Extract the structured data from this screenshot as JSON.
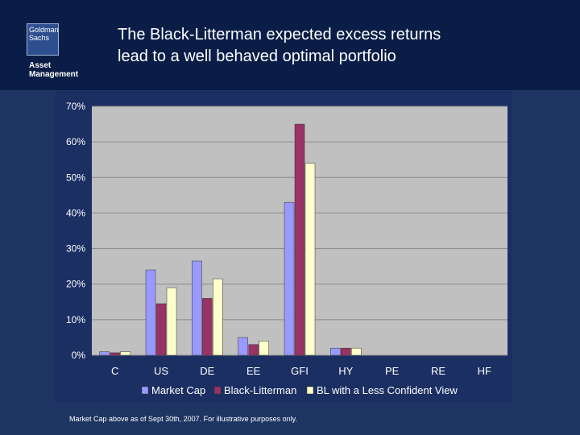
{
  "header": {
    "logo_line1": "Goldman",
    "logo_line2": "Sachs",
    "logo_sub1": "Asset",
    "logo_sub2": "Management",
    "title_line1": "The Black-Litterman expected excess returns",
    "title_line2": "lead to a well behaved optimal portfolio"
  },
  "colors": {
    "page_bg": "#1e3563",
    "header_bg": "#0a1d47",
    "plot_bg": "#c0c0c0",
    "market_cap": "#9999ff",
    "black_litterman": "#993366",
    "bl_less_confident": "#ffffcc"
  },
  "chart_data": {
    "type": "bar",
    "categories": [
      "C",
      "US",
      "DE",
      "EE",
      "GFI",
      "HY",
      "PE",
      "RE",
      "HF"
    ],
    "series": [
      {
        "name": "Market Cap",
        "values": [
          1,
          24,
          26.5,
          5,
          43,
          2,
          0,
          0,
          0
        ]
      },
      {
        "name": "Black-Litterman",
        "values": [
          0.7,
          14.5,
          16,
          3,
          65,
          2,
          0,
          0,
          0
        ]
      },
      {
        "name": "BL with a Less Confident View",
        "values": [
          1,
          19,
          21.5,
          4,
          54,
          2,
          0,
          0,
          0
        ]
      }
    ],
    "yticks": [
      "0%",
      "10%",
      "20%",
      "30%",
      "40%",
      "50%",
      "60%",
      "70%"
    ],
    "ylim": [
      0,
      70
    ],
    "grid": "horizontal",
    "legend_position": "bottom"
  },
  "footnote": "Market Cap above as of Sept 30th, 2007. For illustrative purposes only."
}
